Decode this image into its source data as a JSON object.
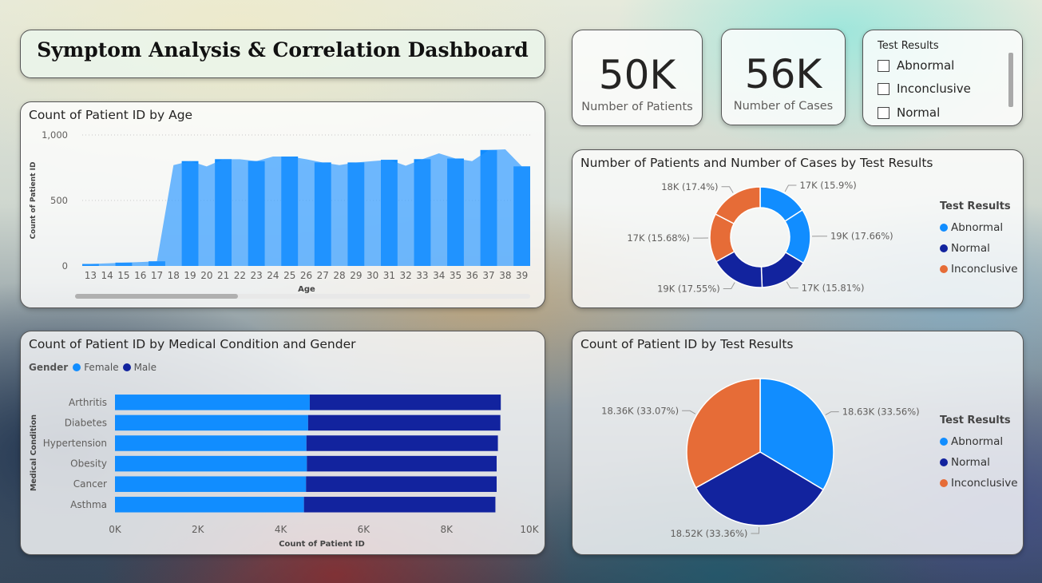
{
  "header": {
    "title": "Symptom Analysis & Correlation Dashboard"
  },
  "kpis": [
    {
      "value": "50K",
      "label": "Number of Patients"
    },
    {
      "value": "56K",
      "label": "Number of Cases"
    }
  ],
  "slicer": {
    "title": "Test Results",
    "items": [
      {
        "label": "Abnormal",
        "checked": false
      },
      {
        "label": "Inconclusive",
        "checked": false
      },
      {
        "label": "Normal",
        "checked": false
      }
    ]
  },
  "colors": {
    "abnormal": "#118dff",
    "normal": "#12239e",
    "inconclusive": "#e66c37",
    "female": "#118dff",
    "male": "#12239e",
    "age_fill": "#3fa2ff",
    "age_stripe": "#118dff"
  },
  "chart_data": [
    {
      "type": "area",
      "title": "Count of Patient ID by Age",
      "xlabel": "Age",
      "ylabel": "Count of Patient ID",
      "ylim": [
        0,
        1000
      ],
      "yticks": [
        "0",
        "500",
        "1,000"
      ],
      "x": [
        13,
        14,
        15,
        16,
        17,
        18,
        19,
        20,
        21,
        22,
        23,
        24,
        25,
        26,
        27,
        28,
        29,
        30,
        31,
        32,
        33,
        34,
        35,
        36,
        37,
        38,
        39
      ],
      "values": [
        15,
        20,
        25,
        30,
        35,
        770,
        800,
        760,
        815,
        815,
        800,
        835,
        835,
        815,
        790,
        770,
        790,
        800,
        810,
        765,
        815,
        860,
        820,
        800,
        885,
        890,
        760
      ],
      "grid": true
    },
    {
      "type": "pie",
      "variant": "donut",
      "title": "Number of Patients and Number of Cases by Test Results",
      "legend_title": "Test Results",
      "legend": [
        "Abnormal",
        "Normal",
        "Inconclusive"
      ],
      "legend_position": "right",
      "slices": [
        {
          "category": "Abnormal",
          "label": "17K (15.9%)",
          "percent": 15.9
        },
        {
          "category": "Abnormal",
          "label": "19K (17.66%)",
          "percent": 17.66
        },
        {
          "category": "Normal",
          "label": "17K (15.81%)",
          "percent": 15.81
        },
        {
          "category": "Normal",
          "label": "19K (17.55%)",
          "percent": 17.55
        },
        {
          "category": "Inconclusive",
          "label": "17K (15.68%)",
          "percent": 15.68
        },
        {
          "category": "Inconclusive",
          "label": "18K (17.4%)",
          "percent": 17.4
        }
      ]
    },
    {
      "type": "bar",
      "orientation": "horizontal",
      "stacked": true,
      "title": "Count of Patient ID by Medical Condition and Gender",
      "xlabel": "Count of Patient ID",
      "ylabel": "Medical Condition",
      "legend_title": "Gender",
      "legend_position": "top-left",
      "xlim": [
        0,
        10000
      ],
      "xticks": [
        "0K",
        "2K",
        "4K",
        "6K",
        "8K",
        "10K"
      ],
      "categories": [
        "Arthritis",
        "Diabetes",
        "Hypertension",
        "Obesity",
        "Cancer",
        "Asthma"
      ],
      "series": [
        {
          "name": "Female",
          "values": [
            4700,
            4660,
            4620,
            4630,
            4610,
            4560
          ]
        },
        {
          "name": "Male",
          "values": [
            4610,
            4640,
            4620,
            4580,
            4600,
            4620
          ]
        }
      ]
    },
    {
      "type": "pie",
      "title": "Count of Patient ID by Test Results",
      "legend_title": "Test Results",
      "legend": [
        "Abnormal",
        "Normal",
        "Inconclusive"
      ],
      "legend_position": "right",
      "slices": [
        {
          "category": "Abnormal",
          "label": "18.63K (33.56%)",
          "percent": 33.56
        },
        {
          "category": "Normal",
          "label": "18.52K (33.36%)",
          "percent": 33.36
        },
        {
          "category": "Inconclusive",
          "label": "18.36K (33.07%)",
          "percent": 33.07
        }
      ]
    }
  ]
}
